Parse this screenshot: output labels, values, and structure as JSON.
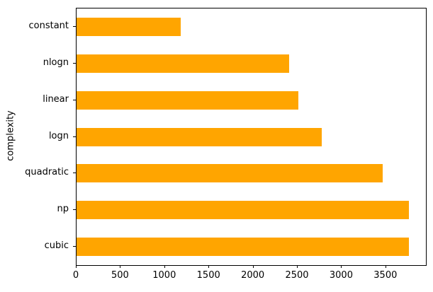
{
  "figure": {
    "background": "#ffffff",
    "spine_color": "#000000",
    "text_color": "#000000"
  },
  "chart_data": {
    "type": "bar",
    "orientation": "horizontal",
    "title": "",
    "xlabel": "",
    "ylabel": "complexity",
    "categories_top_to_bottom": [
      "constant",
      "nlogn",
      "linear",
      "logn",
      "quadratic",
      "np",
      "cubic"
    ],
    "values": [
      1175,
      2400,
      2510,
      2770,
      3460,
      3760,
      3760
    ],
    "xticks": [
      0,
      500,
      1000,
      1500,
      2000,
      2500,
      3000,
      3500
    ],
    "xlim": [
      0,
      3950
    ],
    "bar_color": "#FFA500",
    "bar_fraction_of_slot": 0.5,
    "grid": false,
    "legend": "none"
  }
}
